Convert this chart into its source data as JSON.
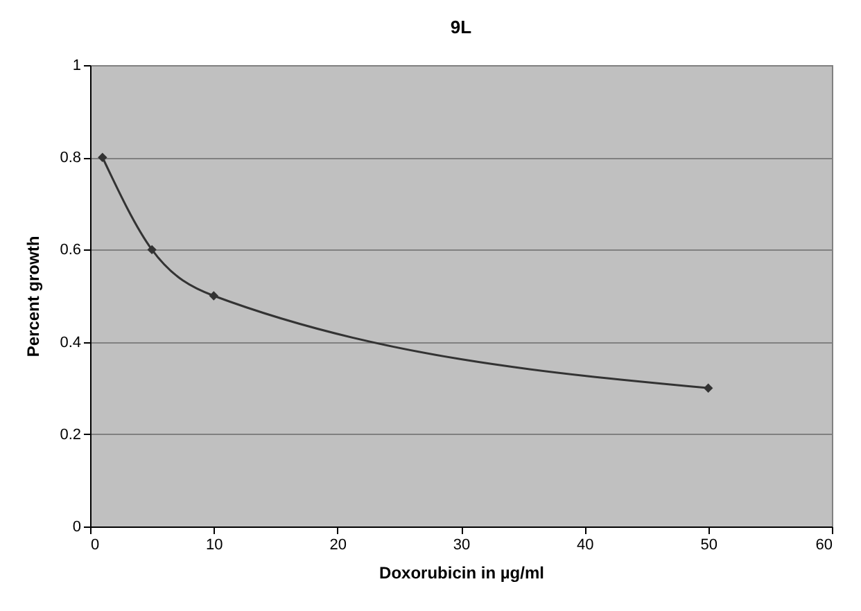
{
  "chart_data": {
    "type": "line",
    "title": "9L",
    "xlabel": "Doxorubicin in µg/ml",
    "ylabel": "Percent growth",
    "x": [
      1,
      5,
      10,
      50
    ],
    "values": [
      0.8,
      0.6,
      0.5,
      0.3
    ],
    "color": "#333333",
    "xlim": [
      0,
      60
    ],
    "xticks": [
      0,
      10,
      20,
      30,
      40,
      50,
      60
    ],
    "ylim": [
      0,
      1
    ],
    "yticks": [
      0,
      0.2,
      0.4,
      0.6,
      0.8,
      1
    ],
    "grid": "y",
    "marker": "diamond",
    "line_style": "solid"
  }
}
